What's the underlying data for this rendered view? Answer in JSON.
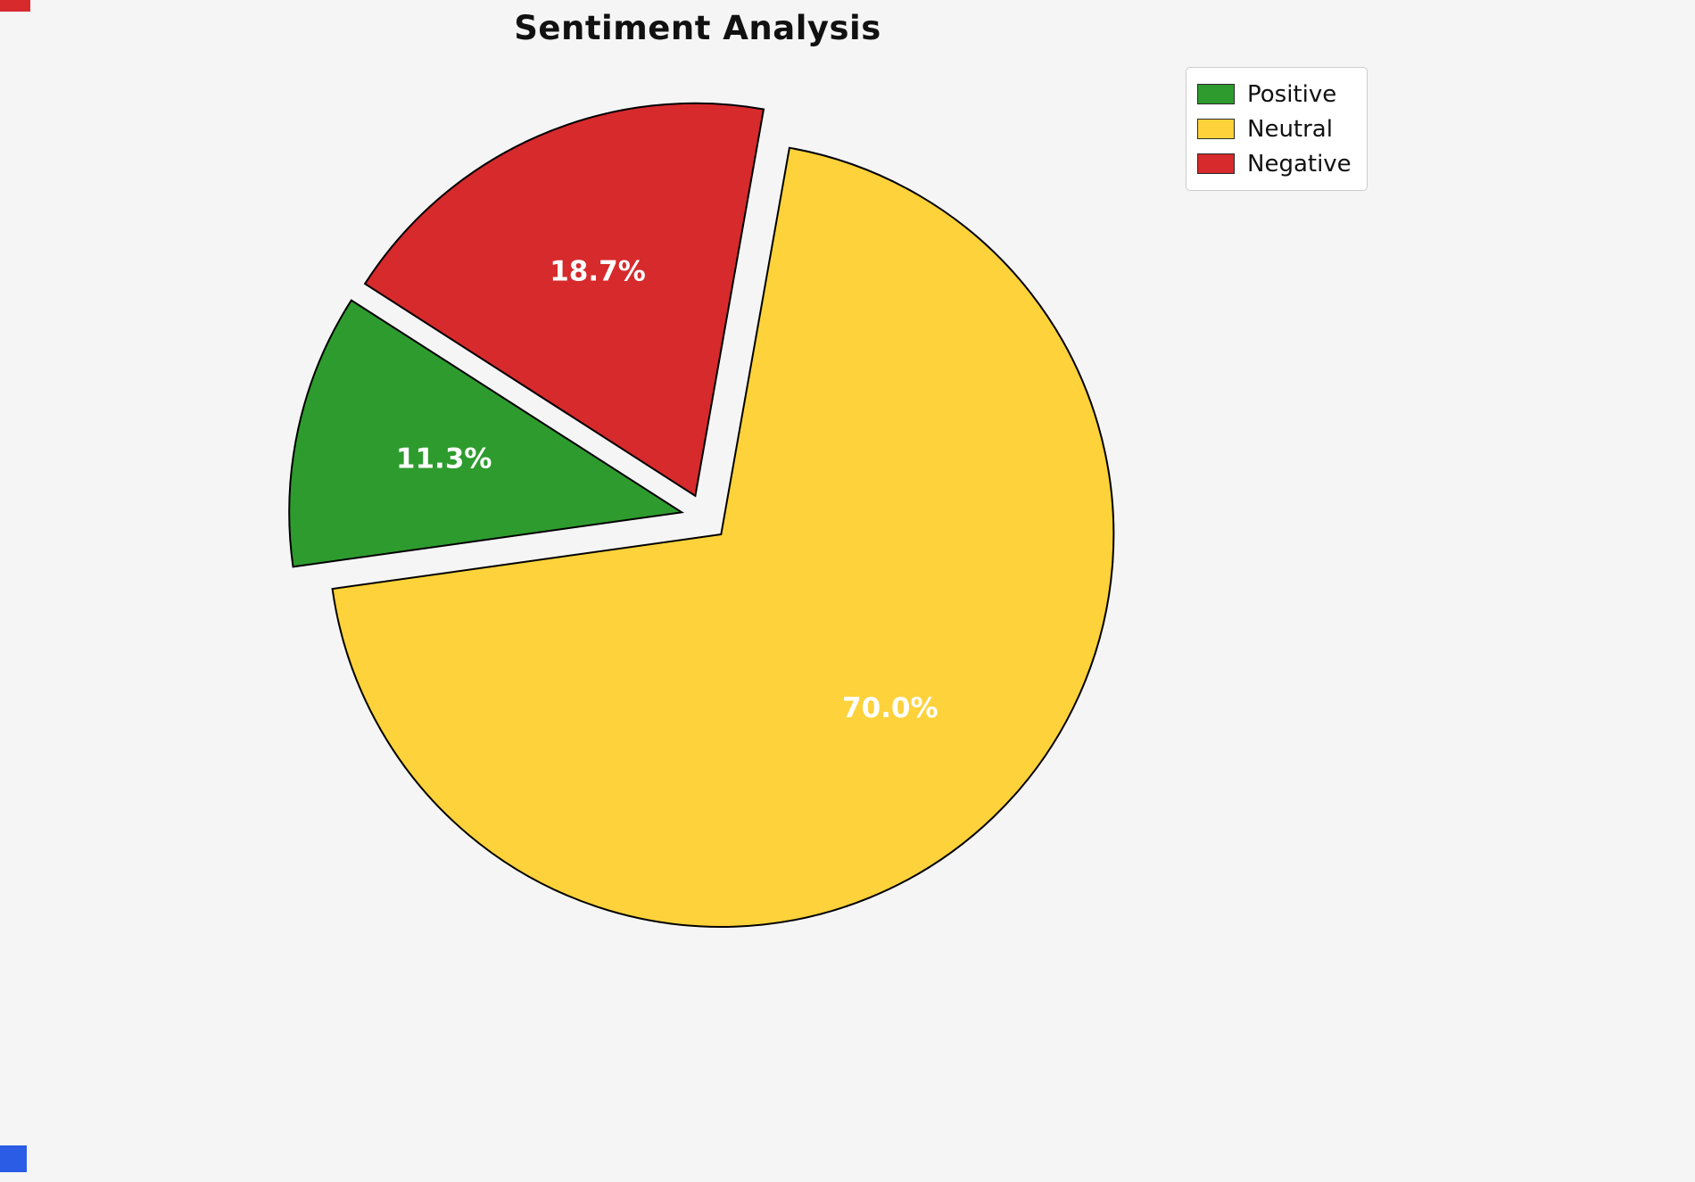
{
  "page": {
    "background": "#f5f5f5"
  },
  "chart_data": {
    "type": "pie",
    "title": "Sentiment Analysis",
    "slices": [
      {
        "label": "Positive",
        "value": 11.3,
        "pct_label": "11.3%",
        "color": "#2e9b2e"
      },
      {
        "label": "Neutral",
        "value": 70.0,
        "pct_label": "70.0%",
        "color": "#fdd23a"
      },
      {
        "label": "Negative",
        "value": 18.7,
        "pct_label": "18.7%",
        "color": "#d62a2c"
      }
    ],
    "legend": {
      "position": "upper right",
      "entries": [
        "Positive",
        "Neutral",
        "Negative"
      ]
    },
    "start_angle_deg": 147.3,
    "counterclock": true,
    "explode": 0.06,
    "label_color": "#ffffff",
    "edge_color": "#000000"
  },
  "artifacts": {
    "top_left_color": "#d62a2c",
    "bottom_left_color": "#2b5ce6"
  }
}
